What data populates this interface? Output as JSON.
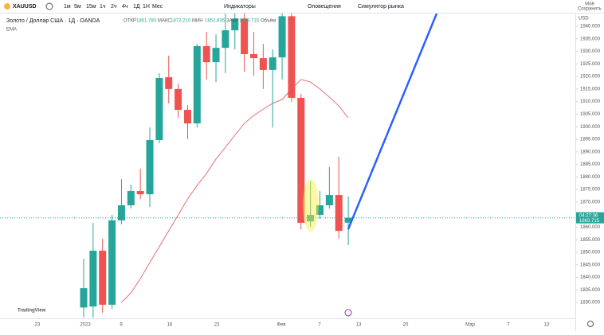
{
  "toolbar": {
    "symbol": "XAUUSD",
    "intervals": [
      "1м",
      "5м",
      "15м",
      "1ч",
      "2ч",
      "4ч",
      "1Д",
      "1Н",
      "Мес"
    ],
    "buttons": [
      "Индикаторы",
      "Оповещения",
      "Симулятор рынка"
    ],
    "save": [
      "Моё",
      "Сохранить"
    ]
  },
  "chart_data": {
    "type": "candlestick",
    "title": "Золото / Доллар США · 1Д · OANDA",
    "ohlc_names": [
      "ОТКР",
      "МАКС",
      "МИН",
      "ЗАКР"
    ],
    "ohlc_labels": [
      "1861.780",
      "1872.210",
      "1852.835",
      "1863.715"
    ],
    "volume_name": "Объём",
    "currency": "USD",
    "countdown": "04:27:36",
    "logo": "TradingView",
    "up_color": "#26a69a",
    "down_color": "#ef5350",
    "candles": [
      [
        1828,
        1847.4,
        1824,
        1835.7
      ],
      [
        1828.4,
        1861.7,
        1824,
        1850.6
      ],
      [
        1850.6,
        1855.4,
        1825.9,
        1829.1
      ],
      [
        1829.1,
        1864.9,
        1827.5,
        1862.7
      ],
      [
        1862.7,
        1879.1,
        1861.1,
        1868.7
      ],
      [
        1868.7,
        1876.9,
        1867.4,
        1874.4
      ],
      [
        1874.4,
        1883.3,
        1871.2,
        1873.1
      ],
      [
        1873.1,
        1899.7,
        1868,
        1894.7
      ],
      [
        1894.7,
        1921.3,
        1893.4,
        1919.4
      ],
      [
        1919.7,
        1928.3,
        1909.3,
        1915
      ],
      [
        1915,
        1917.2,
        1903.5,
        1906.7
      ],
      [
        1906.7,
        1908.6,
        1895,
        1901.3
      ],
      [
        1901.3,
        1933,
        1899.7,
        1932.1
      ],
      [
        1932.1,
        1937.8,
        1918.8,
        1925.7
      ],
      [
        1925.7,
        1936.8,
        1917.8,
        1931.4
      ],
      [
        1931.4,
        1945,
        1921.3,
        1938.4
      ],
      [
        1938.4,
        1947,
        1930.8,
        1943
      ],
      [
        1943,
        1947,
        1921.9,
        1928.9
      ],
      [
        1928.9,
        1937.8,
        1920.3,
        1927.3
      ],
      [
        1927.3,
        1933,
        1915,
        1922.6
      ],
      [
        1922.6,
        1930.8,
        1899.7,
        1927.6
      ],
      [
        1927.6,
        1947,
        1918.8,
        1944
      ],
      [
        1944,
        1947,
        1909.9,
        1911.5
      ],
      [
        1911.5,
        1913.1,
        1859.2,
        1861.7
      ],
      [
        1862.3,
        1878.2,
        1860.1,
        1864.9
      ],
      [
        1864.9,
        1874.4,
        1863.3,
        1868.7
      ],
      [
        1868.7,
        1883.9,
        1867.4,
        1872.8
      ],
      [
        1872.8,
        1888,
        1855.4,
        1858.5
      ],
      [
        1861.78,
        1872.21,
        1852.835,
        1863.715
      ]
    ],
    "ema_name": "EMA",
    "ema_color": "#e57373",
    "ema": [
      null,
      null,
      null,
      null,
      1830,
      1833.8,
      1839.5,
      1845.9,
      1852.2,
      1858.5,
      1864.9,
      1871.2,
      1876.6,
      1881.4,
      1887.1,
      1891.8,
      1896.6,
      1901.3,
      1904.5,
      1907,
      1909.3,
      1910.8,
      1915,
      1918.8,
      1917.8,
      1915,
      1911.8,
      1908.3,
      1903.5
    ],
    "ylim": [
      1823.7,
      1945.07
    ],
    "yticks": [
      {
        "value": 1830,
        "label": "1830.000"
      },
      {
        "value": 1835,
        "label": "1835.000"
      },
      {
        "value": 1840,
        "label": "1840.000"
      },
      {
        "value": 1845,
        "label": "1845.000"
      },
      {
        "value": 1850,
        "label": "1850.000"
      },
      {
        "value": 1855,
        "label": "1855.000"
      },
      {
        "value": 1860,
        "label": "1860.000"
      },
      {
        "value": 1865,
        "label": "1865.000"
      },
      {
        "value": 1870,
        "label": "1870.000"
      },
      {
        "value": 1875,
        "label": "1875.000"
      },
      {
        "value": 1880,
        "label": "1880.000"
      },
      {
        "value": 1885,
        "label": "1885.000"
      },
      {
        "value": 1890,
        "label": "1890.000"
      },
      {
        "value": 1895,
        "label": "1895.000"
      },
      {
        "value": 1900,
        "label": "1900.000"
      },
      {
        "value": 1905,
        "label": "1905.000"
      },
      {
        "value": 1910,
        "label": "1910.000"
      },
      {
        "value": 1915,
        "label": "1915.000"
      },
      {
        "value": 1920,
        "label": "1920.000"
      },
      {
        "value": 1925,
        "label": "1925.000"
      },
      {
        "value": 1930,
        "label": "1930.000"
      },
      {
        "value": 1935,
        "label": "1935.000"
      },
      {
        "value": 1940,
        "label": "1940.000"
      }
    ],
    "x_labels": [
      "23",
      "2023",
      "9",
      "16",
      "23",
      "Фев",
      "7",
      "13",
      "20",
      "Мар",
      "7",
      "13"
    ]
  }
}
